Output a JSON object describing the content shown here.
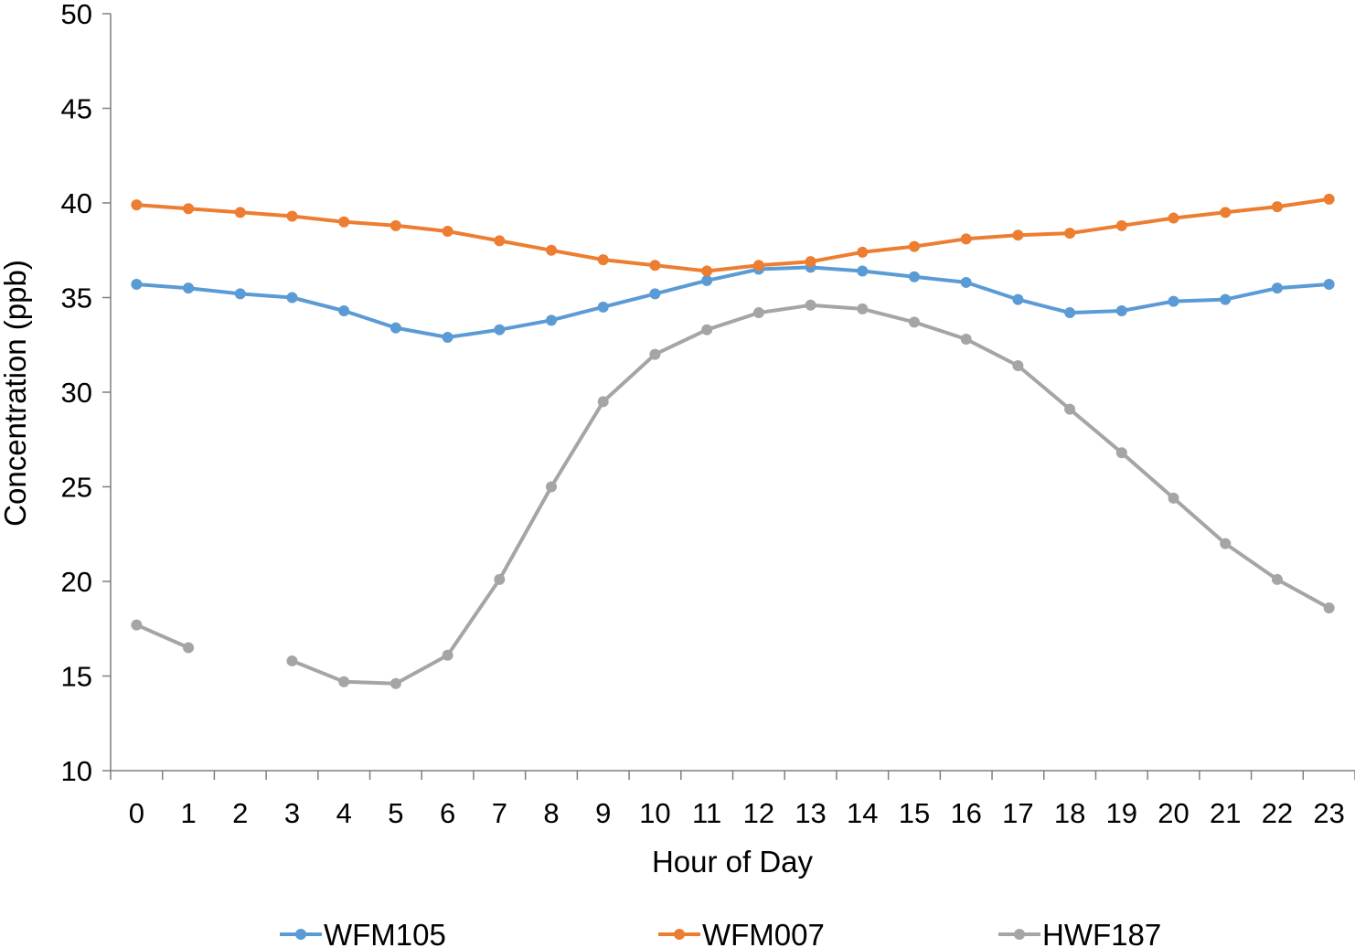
{
  "chart_data": {
    "type": "line",
    "title": "",
    "xlabel": "Hour of Day",
    "ylabel": "Concentration (ppb)",
    "ylim": [
      10,
      50
    ],
    "yticks": [
      "10",
      "15",
      "20",
      "25",
      "30",
      "35",
      "40",
      "45",
      "50"
    ],
    "categories": [
      "0",
      "1",
      "2",
      "3",
      "4",
      "5",
      "6",
      "7",
      "8",
      "9",
      "10",
      "11",
      "12",
      "13",
      "14",
      "15",
      "16",
      "17",
      "18",
      "19",
      "20",
      "21",
      "22",
      "23"
    ],
    "grid": false,
    "legend_position": "bottom",
    "series": [
      {
        "name": "WFM105",
        "color": "#5B9BD5",
        "values": [
          35.7,
          35.5,
          35.2,
          35.0,
          34.3,
          33.4,
          32.9,
          33.3,
          33.8,
          34.5,
          35.2,
          35.9,
          36.5,
          36.6,
          36.4,
          36.1,
          35.8,
          34.9,
          34.2,
          34.3,
          34.8,
          34.9,
          35.5,
          35.7
        ]
      },
      {
        "name": "WFM007",
        "color": "#ED7D31",
        "values": [
          39.9,
          39.7,
          39.5,
          39.3,
          39.0,
          38.8,
          38.5,
          38.0,
          37.5,
          37.0,
          36.7,
          36.4,
          36.7,
          36.9,
          37.4,
          37.7,
          38.1,
          38.3,
          38.4,
          38.8,
          39.2,
          39.5,
          39.8,
          40.2
        ]
      },
      {
        "name": "HWF187",
        "color": "#A5A5A5",
        "values": [
          17.7,
          16.5,
          null,
          15.8,
          14.7,
          14.6,
          16.1,
          20.1,
          25.0,
          29.5,
          32.0,
          33.3,
          34.2,
          34.6,
          34.4,
          33.7,
          32.8,
          31.4,
          29.1,
          26.8,
          24.4,
          22.0,
          20.1,
          18.6
        ]
      }
    ]
  }
}
